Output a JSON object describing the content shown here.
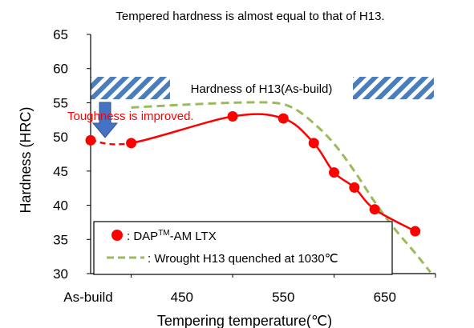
{
  "chart_data": {
    "type": "line",
    "title": "Tempered hardness is almost equal to that of H13.",
    "xlabel": "Tempering temperature(℃)",
    "ylabel": "Hardness (HRC)",
    "ylim": [
      30,
      65
    ],
    "y_ticks": [
      "65",
      "60",
      "55",
      "50",
      "45",
      "40",
      "35",
      "30"
    ],
    "xlim": [
      360,
      700
    ],
    "x_ticks": [
      {
        "value": 360,
        "label": "As-build"
      },
      {
        "value": 450,
        "label": "450"
      },
      {
        "value": 550,
        "label": "550"
      },
      {
        "value": 650,
        "label": "650"
      }
    ],
    "grid": false,
    "legend_placement": "bottom-left",
    "series": [
      {
        "name": "DAPᵀᴹ-AM LTX",
        "marker": "circle",
        "color": "#ff0000",
        "x": [
          360,
          400,
          500,
          550,
          580,
          600,
          620,
          640,
          680
        ],
        "y": [
          49.5,
          49.1,
          53.0,
          52.7,
          49.1,
          44.8,
          42.6,
          39.4,
          36.2
        ]
      },
      {
        "name": "Wrought H13 quenched at 1030℃",
        "style": "dashed",
        "color": "#9bbb59",
        "x": [
          400,
          450,
          500,
          540,
          560,
          580,
          600,
          620,
          640,
          660,
          680,
          695
        ],
        "y": [
          54.3,
          54.7,
          55.0,
          55.0,
          54.2,
          52.0,
          49.0,
          45.0,
          40.5,
          36.5,
          33.0,
          30.2
        ]
      }
    ],
    "annotations": {
      "band_label": "Hardness of H13(As-build)",
      "band_range": [
        55.5,
        58.8
      ],
      "toughness_label": "Toughness  is improved."
    },
    "legend": {
      "dap_prefix": ": DAP",
      "dap_super": "TM",
      "dap_suffix": "-AM LTX",
      "h13": ": Wrought H13 quenched at 1030℃"
    },
    "colors": {
      "dap": "#ff0000",
      "h13": "#9bbb59",
      "band": "#4a7ebb",
      "arrow": "#4472c4",
      "toughness_text": "#ff0000"
    }
  }
}
